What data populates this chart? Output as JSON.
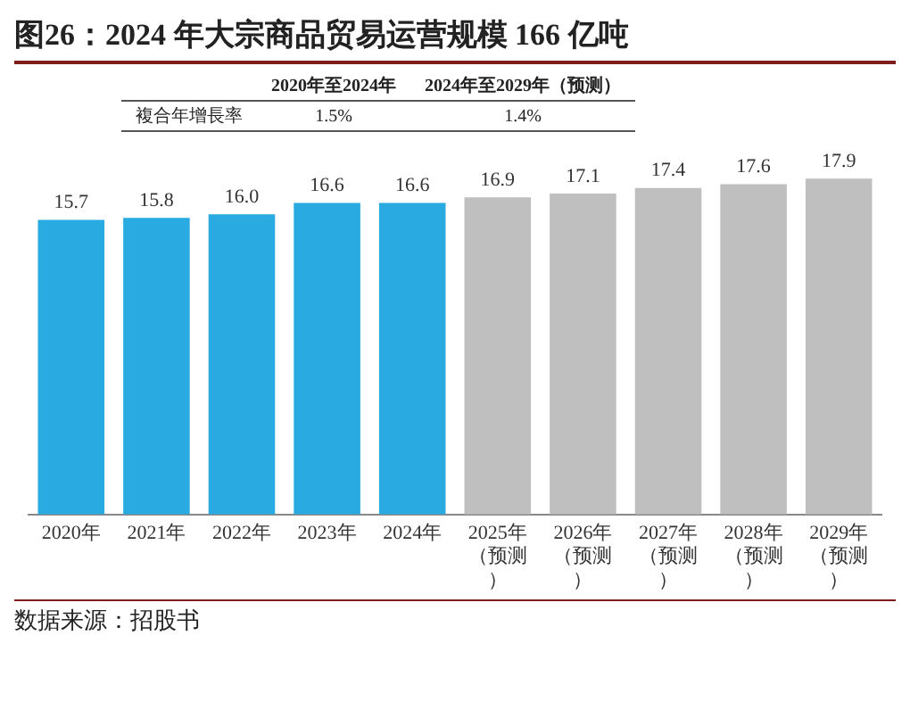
{
  "chart_data": {
    "type": "bar",
    "title": "图26：2024 年大宗商品贸易运营规模 166 亿吨",
    "categories": [
      "2020年",
      "2021年",
      "2022年",
      "2023年",
      "2024年",
      "2025年（预测）",
      "2026年（预测）",
      "2027年（预测）",
      "2028年（预测）",
      "2029年（预测）"
    ],
    "values": [
      15.7,
      15.8,
      16.0,
      16.6,
      16.6,
      16.9,
      17.1,
      17.4,
      17.6,
      17.9
    ],
    "value_labels": [
      "15.7",
      "15.8",
      "16.0",
      "16.6",
      "16.6",
      "16.9",
      "17.1",
      "17.4",
      "17.6",
      "17.9"
    ],
    "colors": [
      "#29abe2",
      "#29abe2",
      "#29abe2",
      "#29abe2",
      "#29abe2",
      "#bfbfbf",
      "#bfbfbf",
      "#bfbfbf",
      "#bfbfbf",
      "#bfbfbf"
    ],
    "data_labels": true,
    "grid": false,
    "legend": false,
    "annotations": [
      "2020年至2024年",
      "2024年至2029年（预测）",
      "複合年增長率",
      "1.5%",
      "1.4%",
      "数据来源：招股书"
    ]
  }
}
